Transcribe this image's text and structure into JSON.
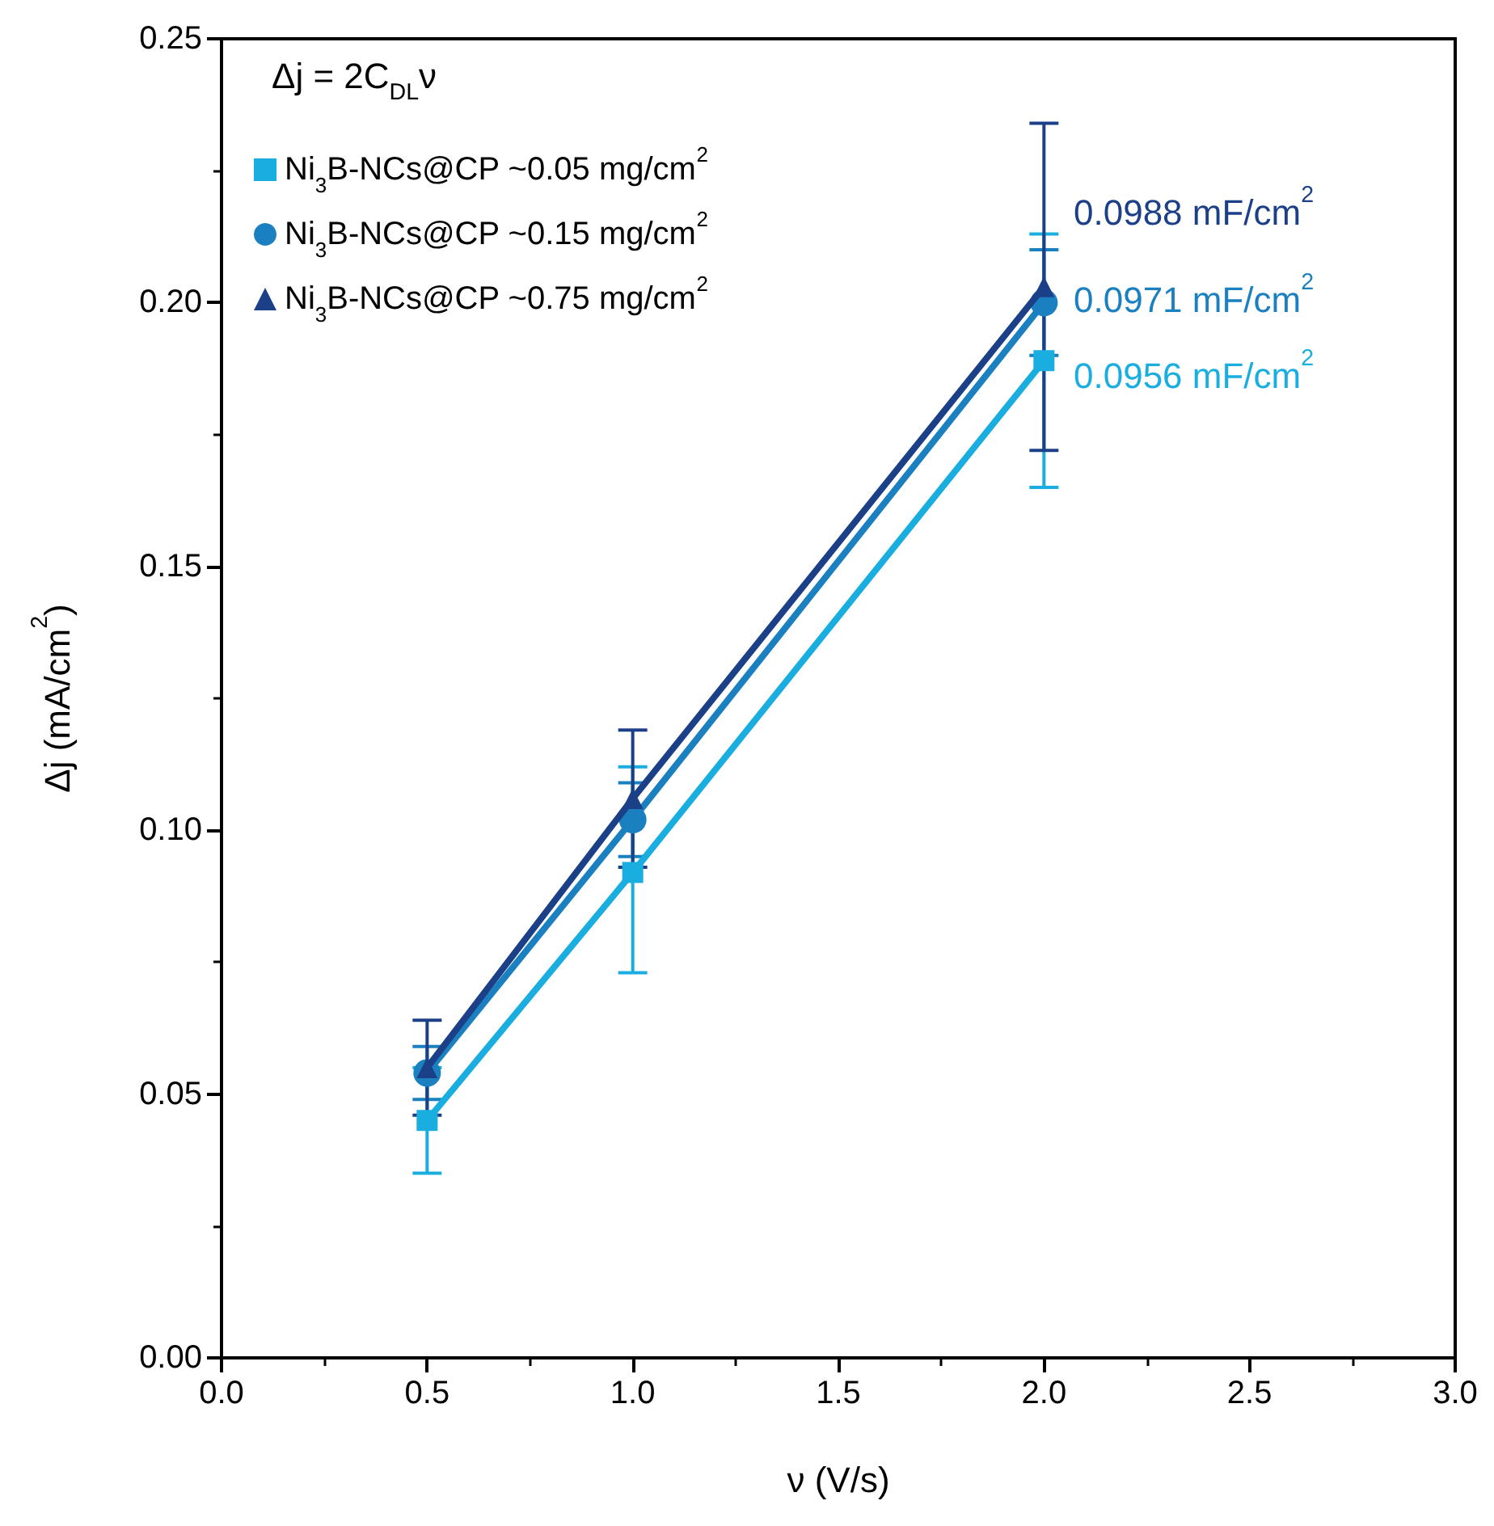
{
  "chart_data": {
    "type": "line",
    "xlabel": "ν (V/s)",
    "ylabel": "Δj (mA/cm$^{2}$)",
    "x": [
      0.5,
      1.0,
      2.0
    ],
    "series": [
      {
        "name": "Ni$_{3}$B-NCs@CP ~0.05 mg/cm$^{2}$",
        "color": "#1aaee0",
        "marker": "square",
        "values": [
          0.045,
          0.092,
          0.189
        ],
        "errors": [
          0.01,
          [
            0.073,
            0.112
          ],
          [
            0.165,
            0.213
          ]
        ]
      },
      {
        "name": "Ni$_{3}$B-NCs@CP ~0.15 mg/cm$^{2}$",
        "color": "#1a80c0",
        "marker": "circle",
        "values": [
          0.054,
          0.102,
          0.2
        ],
        "errors": [
          0.005,
          0.007,
          [
            0.19,
            0.21
          ]
        ]
      },
      {
        "name": "Ni$_{3}$B-NCs@CP ~0.75 mg/cm$^{2}$",
        "color": "#1c4088",
        "marker": "triangle",
        "values": [
          0.055,
          0.106,
          0.203
        ],
        "errors": [
          [
            0.046,
            0.064
          ],
          [
            0.093,
            0.119
          ],
          [
            0.172,
            0.234
          ]
        ]
      }
    ],
    "annotations": [
      "Δj = 2C$_{DL}$ν",
      "0.0956 mF/cm$^{2}$",
      "0.0971 mF/cm$^{2}$",
      "0.0988 mF/cm$^{2}$"
    ],
    "xlim": [
      0,
      3
    ],
    "xticks": [
      {
        "value": 0,
        "label": "0.0"
      },
      {
        "value": 0.5,
        "label": "0.5"
      },
      {
        "value": 1,
        "label": "1.0"
      },
      {
        "value": 1.5,
        "label": "1.5"
      },
      {
        "value": 2,
        "label": "2.0"
      },
      {
        "value": 2.5,
        "label": "2.5"
      },
      {
        "value": 3,
        "label": "3.0"
      }
    ],
    "ylim": [
      0,
      0.25
    ],
    "yticks": [
      {
        "value": 0,
        "label": "0.00"
      },
      {
        "value": 0.05,
        "label": "0.05"
      },
      {
        "value": 0.1,
        "label": "0.10"
      },
      {
        "value": 0.15,
        "label": "0.15"
      },
      {
        "value": 0.2,
        "label": "0.20"
      },
      {
        "value": 0.25,
        "label": "0.25"
      }
    ],
    "grid": false,
    "legend": "top left",
    "line_style": "solid"
  }
}
